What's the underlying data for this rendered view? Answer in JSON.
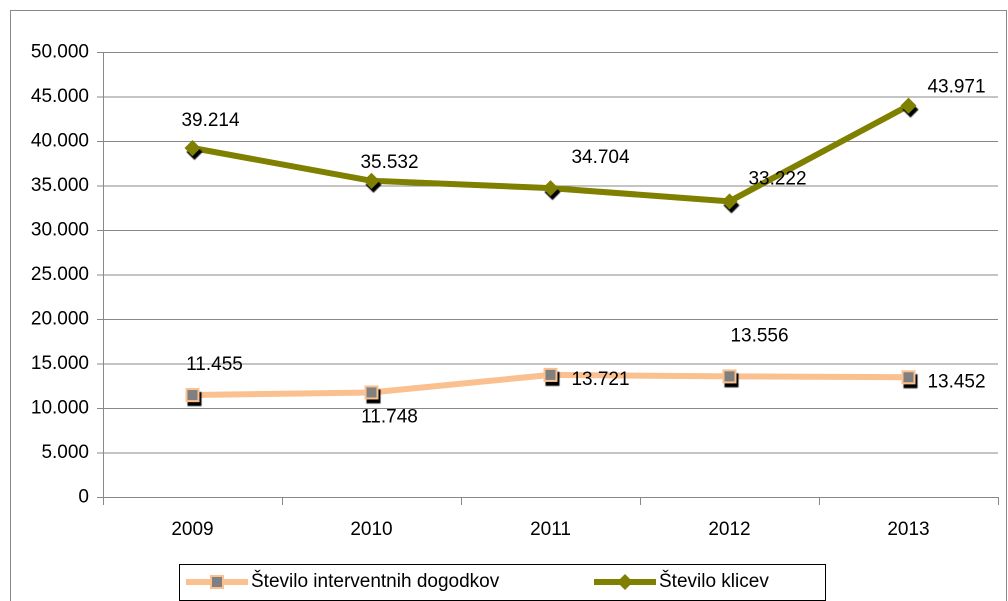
{
  "chart_data": {
    "type": "line",
    "categories": [
      "2009",
      "2010",
      "2011",
      "2012",
      "2013"
    ],
    "series": [
      {
        "name": "Število interventnih dogodkov",
        "color": "#fac090",
        "marker": "square",
        "marker_color": "#808080",
        "values": [
          11455,
          11748,
          13721,
          13556,
          13452
        ],
        "value_labels": [
          "11.455",
          "11.748",
          "13.721",
          "13.556",
          "13.452"
        ]
      },
      {
        "name": "Število klicev",
        "color": "#808000",
        "marker": "diamond",
        "marker_color": "#808000",
        "values": [
          39214,
          35532,
          34704,
          33222,
          43971
        ],
        "value_labels": [
          "39.214",
          "35.532",
          "34.704",
          "33.222",
          "43.971"
        ]
      }
    ],
    "ylim": [
      0,
      50000
    ],
    "yticks": [
      0,
      {
        "value": 5000,
        "label": "5.000"
      },
      {
        "value": 10000,
        "label": "10.000"
      },
      {
        "value": 15000,
        "label": "15.000"
      },
      {
        "value": 20000,
        "label": "20.000"
      },
      {
        "value": 25000,
        "label": "25.000"
      },
      {
        "value": 30000,
        "label": "30.000"
      },
      {
        "value": 35000,
        "label": "35.000"
      },
      {
        "value": 40000,
        "label": "40.000"
      },
      {
        "value": 45000,
        "label": "45.000"
      },
      {
        "value": 50000,
        "label": "50.000"
      }
    ],
    "grid": true,
    "legend": "bottom"
  }
}
